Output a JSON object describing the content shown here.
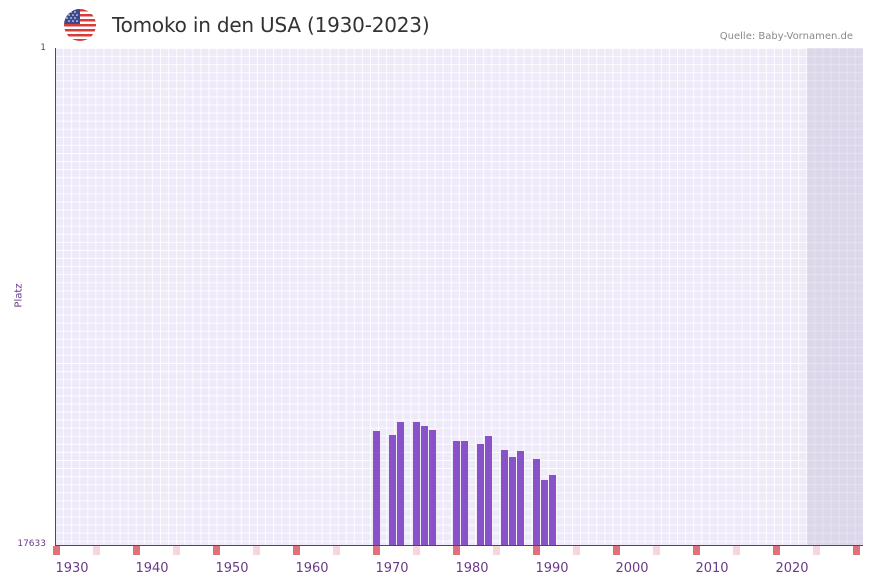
{
  "header": {
    "title": "Tomoko in den USA (1930-2023)",
    "source": "Quelle: Baby-Vornamen.de",
    "flag_icon": "us-flag-icon"
  },
  "axes": {
    "ylabel": "Platz",
    "ytick_top": "1",
    "ytick_bottom": "17633",
    "xticks": [
      "1930",
      "1940",
      "1950",
      "1960",
      "1970",
      "1980",
      "1990",
      "2000",
      "2010",
      "2020"
    ]
  },
  "colors": {
    "bar": "#8a52c9",
    "plot_bg": "#efeaf9",
    "axis": "#7a2b7a",
    "tick_red": "#e0707a",
    "tick_pink": "#f6d6dc"
  },
  "chart_data": {
    "type": "bar",
    "title": "Tomoko in den USA (1930-2023)",
    "xlabel": "",
    "ylabel": "Platz",
    "y_inverted": true,
    "ylim": [
      1,
      17633
    ],
    "xlim": [
      1928,
      2028
    ],
    "grid": true,
    "x": [
      1968,
      1970,
      1971,
      1973,
      1974,
      1975,
      1978,
      1979,
      1981,
      1982,
      1984,
      1985,
      1986,
      1988,
      1989,
      1990
    ],
    "values": [
      13590,
      13730,
      13270,
      13270,
      13410,
      13550,
      13940,
      13940,
      14050,
      13770,
      14260,
      14510,
      14300,
      14580,
      15330,
      15150
    ],
    "source": "Quelle: Baby-Vornamen.de"
  }
}
